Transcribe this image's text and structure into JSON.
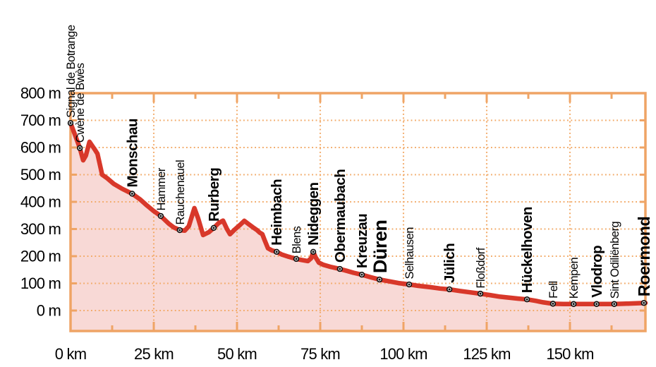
{
  "chart_data": {
    "type": "area",
    "description": "Elevation profile of a route from Signal de Botrange to Roermond",
    "x_unit": "km",
    "y_unit": "m",
    "x_tick_labels": [
      "0 km",
      "25 km",
      "50 km",
      "75 km",
      "100 km",
      "125 km",
      "150 km"
    ],
    "x_ticks_km": [
      0,
      25,
      50,
      75,
      100,
      125,
      150
    ],
    "x_minor_tick_step_km": 12.5,
    "x_max_km": 172.7,
    "y_tick_labels": [
      "0 m",
      "100 m",
      "200 m",
      "300 m",
      "400 m",
      "500 m",
      "600 m",
      "700 m",
      "800 m"
    ],
    "y_ticks_m": [
      0,
      100,
      200,
      300,
      400,
      500,
      600,
      700,
      800
    ],
    "ylim": [
      0,
      800
    ],
    "grid": true,
    "legend": false,
    "colors": {
      "line": "#d8382a",
      "area_fill": "#f8d9d6",
      "axis": "#efa465",
      "grid": "#f2a966",
      "marker": "#111111",
      "marker_ring": "#e9e9e9",
      "label_text": "#000000"
    },
    "profile": [
      [
        0,
        690
      ],
      [
        1.3,
        648
      ],
      [
        2.8,
        598
      ],
      [
        3.8,
        553
      ],
      [
        4.6,
        570
      ],
      [
        5.7,
        621
      ],
      [
        7.2,
        594
      ],
      [
        8.1,
        577
      ],
      [
        9.5,
        500
      ],
      [
        11,
        487
      ],
      [
        13,
        466
      ],
      [
        15.5,
        448
      ],
      [
        18.5,
        430
      ],
      [
        21,
        408
      ],
      [
        23,
        386
      ],
      [
        25,
        366
      ],
      [
        27.1,
        348
      ],
      [
        29.5,
        320
      ],
      [
        31,
        306
      ],
      [
        32.8,
        296
      ],
      [
        34.3,
        294
      ],
      [
        35.5,
        310
      ],
      [
        37.2,
        377
      ],
      [
        38.3,
        340
      ],
      [
        39.8,
        278
      ],
      [
        41.5,
        288
      ],
      [
        43,
        304
      ],
      [
        44.5,
        322
      ],
      [
        45.8,
        331
      ],
      [
        47,
        300
      ],
      [
        47.9,
        281
      ],
      [
        49.3,
        298
      ],
      [
        50.8,
        314
      ],
      [
        52.2,
        330
      ],
      [
        53.5,
        318
      ],
      [
        54.7,
        307
      ],
      [
        56,
        296
      ],
      [
        56.8,
        287
      ],
      [
        57.6,
        281
      ],
      [
        58.2,
        262
      ],
      [
        59.3,
        229
      ],
      [
        60.5,
        221
      ],
      [
        61.9,
        216
      ],
      [
        63.5,
        206
      ],
      [
        65.5,
        198
      ],
      [
        67.8,
        190
      ],
      [
        69.5,
        186
      ],
      [
        71.3,
        182
      ],
      [
        72.3,
        193
      ],
      [
        72.9,
        216
      ],
      [
        73.6,
        196
      ],
      [
        74.6,
        176
      ],
      [
        76,
        168
      ],
      [
        78,
        161
      ],
      [
        80.9,
        153
      ],
      [
        83,
        146
      ],
      [
        85,
        139
      ],
      [
        87.5,
        132
      ],
      [
        90,
        123
      ],
      [
        92.8,
        114
      ],
      [
        95.5,
        108
      ],
      [
        98.5,
        101
      ],
      [
        101.7,
        96
      ],
      [
        104.5,
        91
      ],
      [
        108,
        86
      ],
      [
        111,
        81
      ],
      [
        113.8,
        78
      ],
      [
        117,
        72
      ],
      [
        120,
        67
      ],
      [
        123.1,
        62
      ],
      [
        126,
        57
      ],
      [
        129,
        51
      ],
      [
        132,
        47
      ],
      [
        134.5,
        44
      ],
      [
        137.1,
        41
      ],
      [
        139.5,
        36
      ],
      [
        142,
        30
      ],
      [
        144.9,
        25
      ],
      [
        148,
        24
      ],
      [
        151.1,
        24
      ],
      [
        154,
        24
      ],
      [
        158,
        24
      ],
      [
        161,
        24
      ],
      [
        163.3,
        24
      ],
      [
        166,
        25
      ],
      [
        168.5,
        26
      ],
      [
        170.5,
        27
      ],
      [
        172.7,
        28
      ]
    ],
    "waypoints": [
      {
        "name": "Signal de Botrange",
        "km": 0,
        "elev": 690,
        "emphasis": "small"
      },
      {
        "name": "Cwène de Bwès",
        "km": 2.8,
        "elev": 598,
        "emphasis": "small"
      },
      {
        "name": "Monschau",
        "km": 18.5,
        "elev": 430,
        "emphasis": "bold"
      },
      {
        "name": "Hammer",
        "km": 27.1,
        "elev": 348,
        "emphasis": "small"
      },
      {
        "name": "Rauchenauel",
        "km": 32.8,
        "elev": 296,
        "emphasis": "small"
      },
      {
        "name": "Rurberg",
        "km": 43,
        "elev": 304,
        "emphasis": "bold"
      },
      {
        "name": "Heimbach",
        "km": 61.9,
        "elev": 216,
        "emphasis": "bold"
      },
      {
        "name": "Blens",
        "km": 67.8,
        "elev": 190,
        "emphasis": "small"
      },
      {
        "name": "Nideggen",
        "km": 72.9,
        "elev": 216,
        "emphasis": "bold"
      },
      {
        "name": "Obermaubach",
        "km": 80.9,
        "elev": 153,
        "emphasis": "bold"
      },
      {
        "name": "Kreuzau",
        "km": 87.5,
        "elev": 132,
        "emphasis": "bold"
      },
      {
        "name": "Düren",
        "km": 92.8,
        "elev": 114,
        "emphasis": "xlarge"
      },
      {
        "name": "Selhausen",
        "km": 101.7,
        "elev": 96,
        "emphasis": "small"
      },
      {
        "name": "Jülich",
        "km": 113.8,
        "elev": 78,
        "emphasis": "bold"
      },
      {
        "name": "Floßdorf",
        "km": 123.1,
        "elev": 62,
        "emphasis": "small"
      },
      {
        "name": "Hückelhoven",
        "km": 137.1,
        "elev": 41,
        "emphasis": "bold"
      },
      {
        "name": "Fell",
        "km": 144.9,
        "elev": 25,
        "emphasis": "small"
      },
      {
        "name": "Kempen",
        "km": 151.1,
        "elev": 24,
        "emphasis": "small"
      },
      {
        "name": "Vlodrop",
        "km": 158,
        "elev": 24,
        "emphasis": "bold"
      },
      {
        "name": "Sint Odiliënberg",
        "km": 163.3,
        "elev": 24,
        "emphasis": "small"
      },
      {
        "name": "Roermond",
        "km": 172.2,
        "elev": 28,
        "emphasis": "large"
      }
    ]
  }
}
